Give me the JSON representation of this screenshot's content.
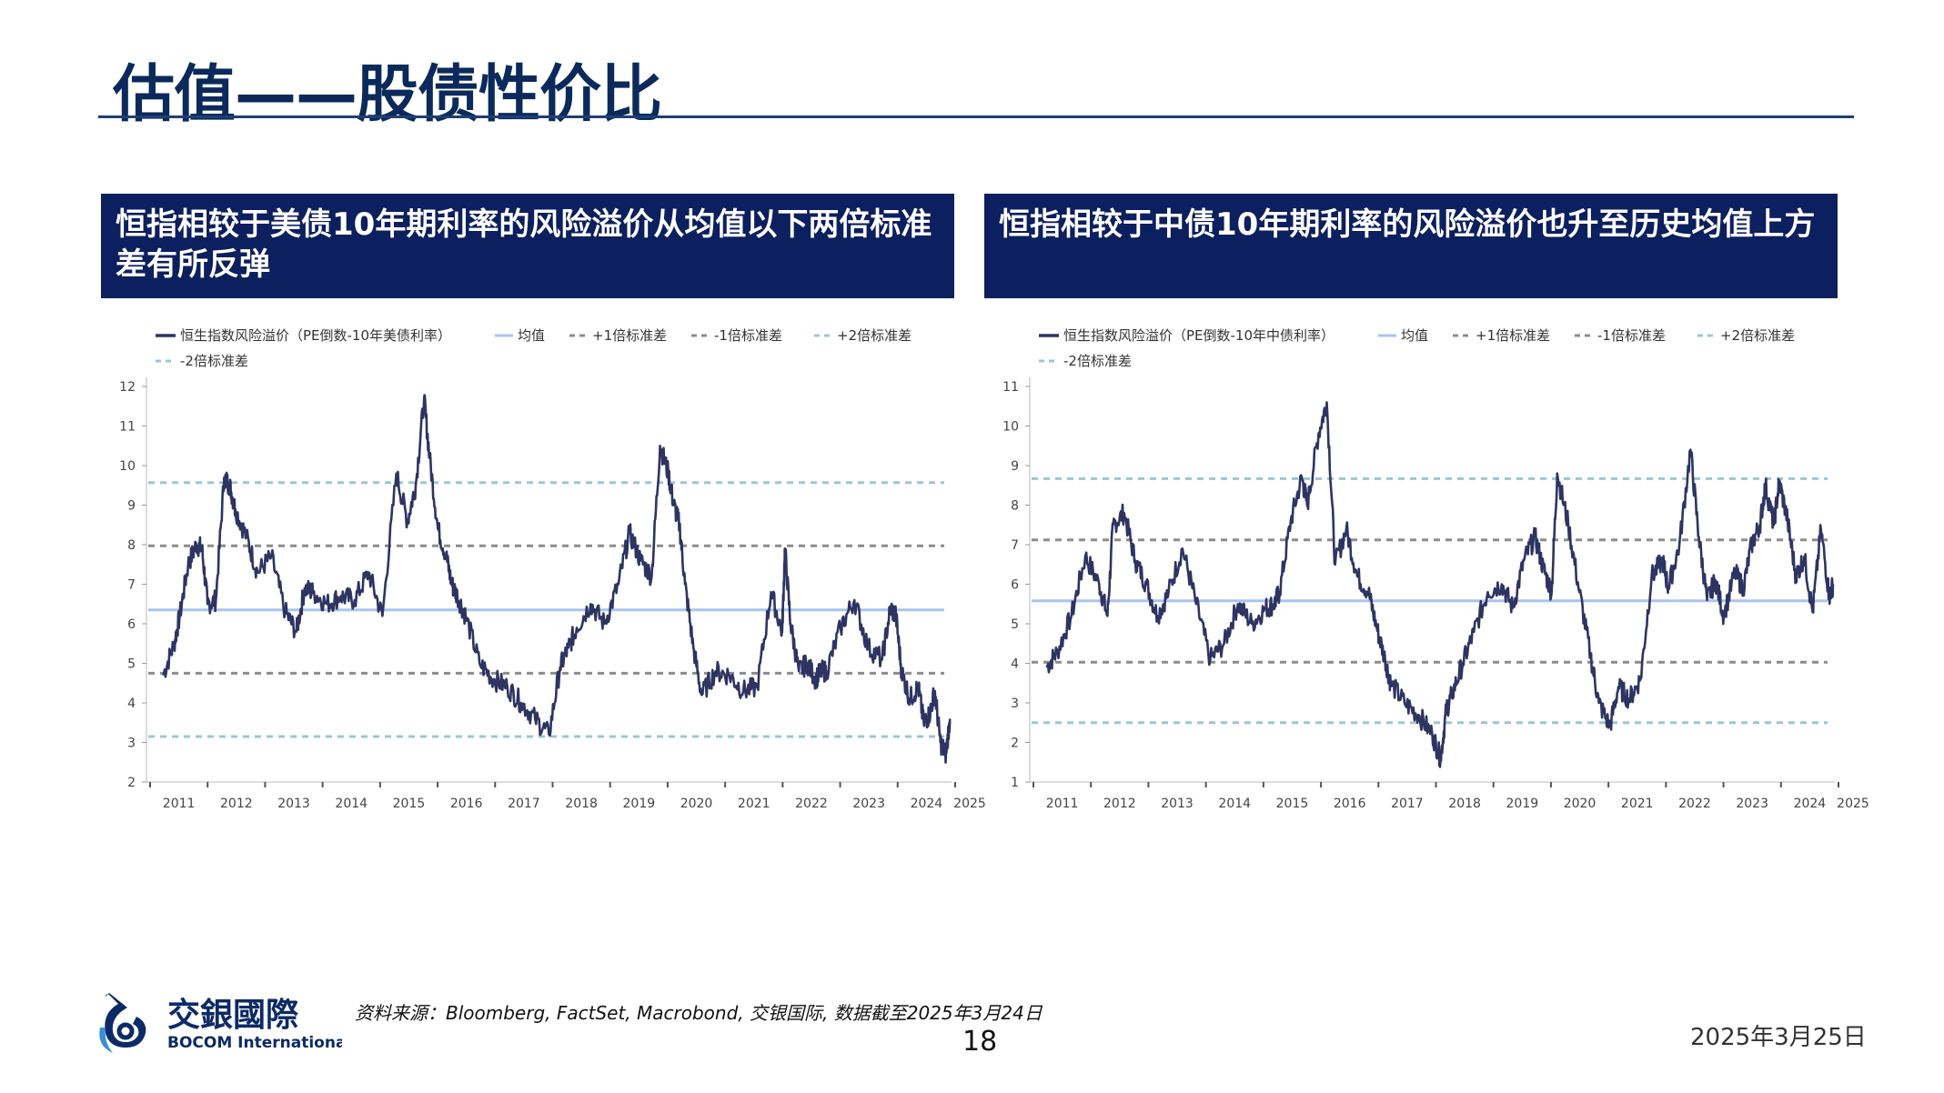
{
  "page": {
    "title": "估值——股债性价比",
    "source_note": "资料来源：Bloomberg, FactSet, Macrobond, 交银国际, 数据截至2025年3月24日",
    "page_number": "18",
    "date": "2025年3月25日",
    "logo": {
      "cn": "交銀國際",
      "en": "BOCOM International"
    }
  },
  "colors": {
    "header_bg": "#0c1f5e",
    "series": "#2e3462",
    "mean": "#a9c4ee",
    "std1": "#8c8c8c",
    "std2": "#9cc7cf",
    "title": "#0b2a5b"
  },
  "chart_data": [
    {
      "type": "line",
      "header": "恒指相较于美债10年期利率的风险溢价从均值以下两倍标准差有所反弹",
      "legend": [
        "恒生指数风险溢价（PE倒数-10年美债利率）",
        "均值",
        "+1倍标准差",
        "-1倍标准差",
        "+2倍标准差",
        "-2倍标准差"
      ],
      "ylim": [
        2,
        12
      ],
      "yticks": [
        2,
        3,
        4,
        5,
        6,
        7,
        8,
        9,
        10,
        11,
        12
      ],
      "xlim": [
        2010.5,
        2025.0
      ],
      "xticks": [
        "2011",
        "2012",
        "2013",
        "2014",
        "2015",
        "2016",
        "2017",
        "2018",
        "2019",
        "2020",
        "2021",
        "2022",
        "2023",
        "2024",
        "2025"
      ],
      "reference_lines": {
        "mean": 6.35,
        "plus1": 7.97,
        "minus1": 4.75,
        "plus2": 9.57,
        "minus2": 3.15
      },
      "series": [
        {
          "name": "恒生指数风险溢价（PE倒数-10年美债利率）",
          "x": [
            2010.8,
            2011.0,
            2011.1,
            2011.25,
            2011.4,
            2011.5,
            2011.6,
            2011.75,
            2011.9,
            2012.0,
            2012.1,
            2012.3,
            2012.5,
            2012.75,
            2013.0,
            2013.2,
            2013.35,
            2013.5,
            2013.75,
            2014.0,
            2014.25,
            2014.5,
            2014.75,
            2015.0,
            2015.2,
            2015.35,
            2015.5,
            2015.6,
            2015.75,
            2015.9,
            2016.0,
            2016.1,
            2016.25,
            2016.5,
            2016.75,
            2017.0,
            2017.25,
            2017.5,
            2017.75,
            2017.95,
            2018.1,
            2018.25,
            2018.5,
            2018.75,
            2019.0,
            2019.2,
            2019.4,
            2019.6,
            2019.75,
            2019.9,
            2020.0,
            2020.1,
            2020.2,
            2020.35,
            2020.5,
            2020.75,
            2021.0,
            2021.25,
            2021.5,
            2021.75,
            2021.95,
            2022.0,
            2022.1,
            2022.25,
            2022.4,
            2022.55,
            2022.65,
            2022.75,
            2023.0,
            2023.25,
            2023.5,
            2023.75,
            2023.9,
            2024.0,
            2024.1,
            2024.25,
            2024.4,
            2024.5,
            2024.6,
            2024.7,
            2024.8,
            2024.9,
            2024.97
          ],
          "values": [
            4.7,
            5.5,
            6.2,
            7.5,
            8.0,
            7.9,
            6.5,
            6.6,
            9.7,
            9.5,
            8.9,
            8.2,
            7.3,
            7.7,
            6.3,
            5.8,
            6.9,
            6.8,
            6.5,
            6.7,
            6.6,
            7.3,
            6.2,
            9.8,
            8.6,
            9.5,
            11.7,
            10.2,
            8.4,
            7.7,
            7.0,
            6.7,
            6.2,
            5.0,
            4.6,
            4.4,
            4.0,
            3.6,
            3.2,
            4.9,
            5.4,
            5.9,
            6.5,
            6.0,
            7.0,
            8.3,
            7.6,
            7.2,
            10.5,
            9.8,
            9.0,
            8.5,
            7.0,
            5.4,
            4.2,
            4.8,
            4.7,
            4.3,
            4.4,
            6.8,
            5.8,
            7.9,
            6.0,
            4.8,
            5.0,
            4.6,
            4.8,
            4.8,
            5.9,
            6.6,
            5.4,
            5.1,
            6.4,
            6.2,
            4.8,
            4.1,
            4.4,
            3.5,
            3.7,
            4.3,
            3.0,
            2.7,
            3.6
          ]
        }
      ]
    },
    {
      "type": "line",
      "header": "恒指相较于中债10年期利率的风险溢价也升至历史均值上方",
      "legend": [
        "恒生指数风险溢价（PE倒数-10年中债利率）",
        "均值",
        "+1倍标准差",
        "-1倍标准差",
        "+2倍标准差",
        "-2倍标准差"
      ],
      "ylim": [
        1,
        11
      ],
      "yticks": [
        1,
        2,
        3,
        4,
        5,
        6,
        7,
        8,
        9,
        10,
        11
      ],
      "xlim": [
        2010.5,
        2025.0
      ],
      "xticks": [
        "2011",
        "2012",
        "2013",
        "2014",
        "2015",
        "2016",
        "2017",
        "2018",
        "2019",
        "2020",
        "2021",
        "2022",
        "2023",
        "2024",
        "2025"
      ],
      "reference_lines": {
        "mean": 5.58,
        "plus1": 7.12,
        "minus1": 4.03,
        "plus2": 8.67,
        "minus2": 2.5
      },
      "series": [
        {
          "name": "恒生指数风险溢价（PE倒数-10年中债利率）",
          "x": [
            2010.8,
            2011.0,
            2011.25,
            2011.5,
            2011.75,
            2011.9,
            2012.0,
            2012.2,
            2012.4,
            2012.6,
            2012.8,
            2013.0,
            2013.25,
            2013.5,
            2013.75,
            2014.0,
            2014.25,
            2014.5,
            2014.75,
            2014.9,
            2015.0,
            2015.2,
            2015.4,
            2015.5,
            2015.7,
            2015.85,
            2016.0,
            2016.2,
            2016.4,
            2016.6,
            2016.75,
            2016.9,
            2017.0,
            2017.25,
            2017.5,
            2017.75,
            2017.9,
            2018.0,
            2018.1,
            2018.3,
            2018.5,
            2018.75,
            2019.0,
            2019.2,
            2019.4,
            2019.6,
            2019.75,
            2019.9,
            2020.0,
            2020.2,
            2020.4,
            2020.6,
            2020.75,
            2020.95,
            2021.1,
            2021.3,
            2021.5,
            2021.7,
            2021.9,
            2022.0,
            2022.2,
            2022.4,
            2022.55,
            2022.7,
            2022.85,
            2023.0,
            2023.2,
            2023.35,
            2023.5,
            2023.65,
            2023.75,
            2023.9,
            2024.0,
            2024.15,
            2024.3,
            2024.45,
            2024.6,
            2024.75,
            2024.9,
            2024.97
          ],
          "values": [
            3.9,
            4.3,
            5.2,
            6.7,
            6.0,
            5.2,
            7.5,
            7.8,
            6.6,
            6.0,
            5.2,
            5.8,
            6.9,
            5.5,
            4.1,
            4.5,
            5.5,
            5.0,
            5.4,
            5.5,
            5.8,
            7.6,
            8.7,
            8.0,
            9.8,
            10.6,
            6.5,
            7.4,
            6.2,
            5.8,
            4.9,
            4.1,
            3.5,
            3.0,
            2.7,
            2.2,
            1.6,
            2.8,
            3.2,
            4.0,
            4.8,
            5.8,
            6.0,
            5.4,
            6.6,
            7.2,
            6.4,
            5.8,
            8.8,
            7.5,
            5.8,
            4.2,
            3.0,
            2.4,
            3.4,
            3.1,
            3.6,
            6.2,
            6.6,
            5.9,
            7.0,
            9.4,
            7.2,
            5.6,
            6.1,
            5.2,
            6.3,
            5.9,
            7.0,
            7.5,
            8.5,
            7.5,
            8.6,
            7.6,
            6.2,
            6.7,
            5.3,
            7.4,
            5.7,
            6.0
          ]
        }
      ]
    }
  ]
}
